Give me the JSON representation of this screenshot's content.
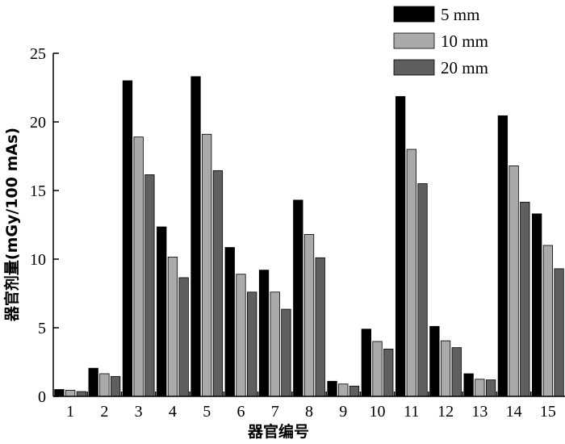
{
  "chart_data": {
    "type": "bar",
    "title": "",
    "xlabel": "器官编号",
    "ylabel": "器官剂量(mGy/100 mAs)",
    "ylim": [
      0,
      25
    ],
    "yticks": [
      "0",
      "5",
      "10",
      "15",
      "20",
      "25"
    ],
    "categories": [
      "1",
      "2",
      "3",
      "4",
      "5",
      "6",
      "7",
      "8",
      "9",
      "10",
      "11",
      "12",
      "13",
      "14",
      "15"
    ],
    "legend_position": "top-right",
    "grid": false,
    "series": [
      {
        "name": "5 mm",
        "color": "#000000",
        "values": [
          0.5,
          2.05,
          23.0,
          12.35,
          23.3,
          10.85,
          9.2,
          14.3,
          1.1,
          4.9,
          21.85,
          5.1,
          1.65,
          20.45,
          13.3
        ]
      },
      {
        "name": "10 mm",
        "color": "#aaaaaa",
        "values": [
          0.45,
          1.65,
          18.9,
          10.15,
          19.1,
          8.9,
          7.6,
          11.8,
          0.9,
          4.0,
          18.0,
          4.05,
          1.25,
          16.8,
          11.0
        ]
      },
      {
        "name": "20 mm",
        "color": "#5f5f5f",
        "values": [
          0.35,
          1.45,
          16.15,
          8.65,
          16.45,
          7.6,
          6.35,
          10.1,
          0.75,
          3.45,
          15.5,
          3.55,
          1.2,
          14.15,
          9.3
        ]
      }
    ]
  }
}
